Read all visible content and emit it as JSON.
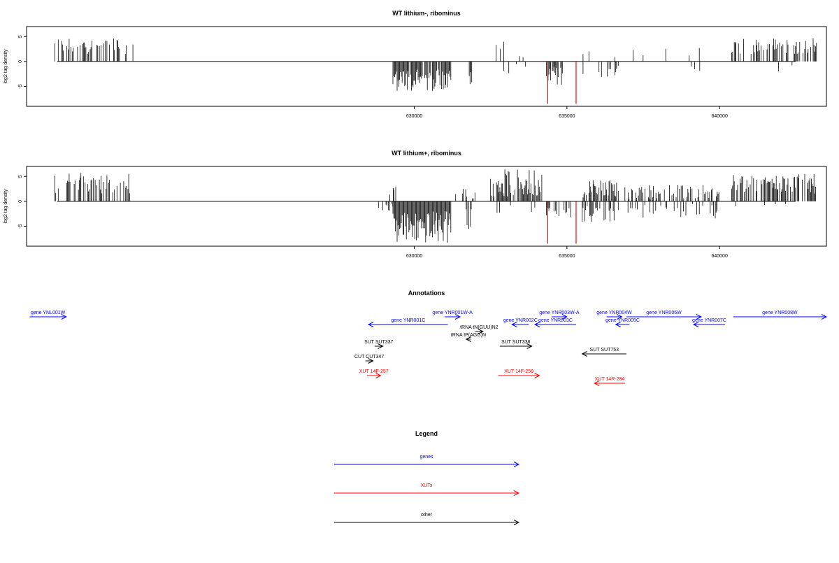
{
  "chart_data": [
    {
      "type": "bar",
      "title": "WT lithium-, ribominus",
      "xlabel": "",
      "ylabel": "log2 tag density",
      "xlim": [
        617300,
        643500
      ],
      "ylim": [
        -9,
        7
      ],
      "x_ticks": [
        630000,
        635000,
        640000
      ],
      "y_ticks": [
        5,
        0,
        -5
      ],
      "colors": {
        "signal": "#000000",
        "highlight": "#ff0000"
      },
      "segments": [
        {
          "start": 618200,
          "end": 620800,
          "sign": 1,
          "min": 1.5,
          "max": 4.8,
          "density": 0.45
        },
        {
          "start": 629300,
          "end": 631200,
          "sign": -1,
          "min": 1.5,
          "max": 6.0,
          "density": 0.9
        },
        {
          "start": 631800,
          "end": 631900,
          "sign": -1,
          "min": 2.0,
          "max": 4.8,
          "density": 0.9
        },
        {
          "start": 632600,
          "end": 633700,
          "sign": 1,
          "min": 0.5,
          "max": 4.0,
          "density": 0.12
        },
        {
          "start": 632600,
          "end": 633800,
          "sign": -1,
          "min": 0.5,
          "max": 2.5,
          "density": 0.08
        },
        {
          "start": 634300,
          "end": 634900,
          "sign": -1,
          "min": 1.0,
          "max": 5.0,
          "density": 0.8
        },
        {
          "start": 635500,
          "end": 636600,
          "sign": 1,
          "min": 0.5,
          "max": 3.2,
          "density": 0.12
        },
        {
          "start": 635500,
          "end": 636700,
          "sign": -1,
          "min": 0.5,
          "max": 3.2,
          "density": 0.15
        },
        {
          "start": 637000,
          "end": 640000,
          "sign": 1,
          "min": 0.5,
          "max": 2.8,
          "density": 0.1
        },
        {
          "start": 638800,
          "end": 640000,
          "sign": -1,
          "min": 0.5,
          "max": 2.5,
          "density": 0.1
        },
        {
          "start": 640400,
          "end": 643200,
          "sign": 1,
          "min": 1.5,
          "max": 4.8,
          "density": 0.45
        },
        {
          "start": 641000,
          "end": 642800,
          "sign": -1,
          "min": 0.5,
          "max": 3.0,
          "density": 0.03
        }
      ],
      "highlights": [
        {
          "x": 634370,
          "value": -8.5
        },
        {
          "x": 635300,
          "value": -8.5
        }
      ]
    },
    {
      "type": "bar",
      "title": "WT lithium+, ribominus",
      "xlabel": "",
      "ylabel": "log2 tag density",
      "xlim": [
        617300,
        643500
      ],
      "ylim": [
        -9,
        7
      ],
      "x_ticks": [
        630000,
        635000,
        640000
      ],
      "y_ticks": [
        5,
        0,
        -5
      ],
      "colors": {
        "signal": "#000000",
        "highlight": "#ff0000"
      },
      "segments": [
        {
          "start": 618200,
          "end": 620800,
          "sign": 1,
          "min": 1.5,
          "max": 5.8,
          "density": 0.55
        },
        {
          "start": 628800,
          "end": 629300,
          "sign": -1,
          "min": 0.5,
          "max": 2.0,
          "density": 0.4
        },
        {
          "start": 629200,
          "end": 629400,
          "sign": 1,
          "min": 1.0,
          "max": 3.5,
          "density": 0.5
        },
        {
          "start": 629300,
          "end": 631200,
          "sign": -1,
          "min": 2.0,
          "max": 8.5,
          "density": 1.0
        },
        {
          "start": 631300,
          "end": 632000,
          "sign": 1,
          "min": 0.5,
          "max": 2.8,
          "density": 0.3
        },
        {
          "start": 631700,
          "end": 631900,
          "sign": -1,
          "min": 1.5,
          "max": 6.0,
          "density": 0.6
        },
        {
          "start": 632500,
          "end": 634200,
          "sign": 1,
          "min": 0.8,
          "max": 6.5,
          "density": 0.85
        },
        {
          "start": 632600,
          "end": 634000,
          "sign": -1,
          "min": 0.5,
          "max": 3.0,
          "density": 0.15
        },
        {
          "start": 634300,
          "end": 635200,
          "sign": -1,
          "min": 0.5,
          "max": 3.5,
          "density": 0.55
        },
        {
          "start": 635500,
          "end": 636700,
          "sign": 1,
          "min": 0.8,
          "max": 4.3,
          "density": 0.6
        },
        {
          "start": 635500,
          "end": 636700,
          "sign": -1,
          "min": 0.8,
          "max": 4.5,
          "density": 0.6
        },
        {
          "start": 636900,
          "end": 640000,
          "sign": 1,
          "min": 0.5,
          "max": 3.3,
          "density": 0.4
        },
        {
          "start": 637000,
          "end": 640000,
          "sign": -1,
          "min": 0.5,
          "max": 3.5,
          "density": 0.3
        },
        {
          "start": 640400,
          "end": 643200,
          "sign": 1,
          "min": 1.5,
          "max": 5.5,
          "density": 0.6
        },
        {
          "start": 640400,
          "end": 643000,
          "sign": -1,
          "min": 0.5,
          "max": 1.5,
          "density": 0.05
        }
      ],
      "highlights": [
        {
          "x": 634370,
          "value": -8.5
        },
        {
          "x": 635300,
          "value": -8.5
        }
      ]
    },
    {
      "type": "diagram",
      "title": "Annotations",
      "colors": {
        "genes": "#0000ff",
        "XUTs": "#ff0000",
        "other": "#000000"
      },
      "features": [
        {
          "label": "gene YNL001W",
          "category": "genes",
          "start": 617400,
          "end": 618600,
          "direction": "right"
        },
        {
          "label": "gene YNR001C",
          "category": "genes",
          "start": 628500,
          "end": 631100,
          "direction": "left"
        },
        {
          "label": "gene YNR001W-A",
          "category": "genes",
          "start": 631000,
          "end": 631500,
          "direction": "right"
        },
        {
          "label": "gene YNR002C",
          "category": "genes",
          "start": 633200,
          "end": 633750,
          "direction": "left"
        },
        {
          "label": "gene YNR003W-A",
          "category": "genes",
          "start": 634500,
          "end": 635000,
          "direction": "right"
        },
        {
          "label": "gene YNR003C",
          "category": "genes",
          "start": 633950,
          "end": 635300,
          "direction": "left"
        },
        {
          "label": "gene YNR004W",
          "category": "genes",
          "start": 636300,
          "end": 636800,
          "direction": "right"
        },
        {
          "label": "gene YNR005C",
          "category": "genes",
          "start": 636600,
          "end": 637050,
          "direction": "left"
        },
        {
          "label": "gene YNR006W",
          "category": "genes",
          "start": 636950,
          "end": 639400,
          "direction": "right"
        },
        {
          "label": "gene YNR007C",
          "category": "genes",
          "start": 639150,
          "end": 640180,
          "direction": "left"
        },
        {
          "label": "gene YNR008W",
          "category": "genes",
          "start": 640450,
          "end": 643500,
          "direction": "right"
        },
        {
          "label": "tRNA tN(GUU)N2",
          "category": "other",
          "start": 632000,
          "end": 632250,
          "direction": "right"
        },
        {
          "label": "tRNA tP(AGG)N",
          "category": "other",
          "start": 631700,
          "end": 631850,
          "direction": "left"
        },
        {
          "label": "SUT SUT337",
          "category": "other",
          "start": 628700,
          "end": 628970,
          "direction": "right"
        },
        {
          "label": "SUT SUT338",
          "category": "other",
          "start": 632800,
          "end": 633850,
          "direction": "right"
        },
        {
          "label": "SUT SUT753",
          "category": "other",
          "start": 635500,
          "end": 636950,
          "direction": "left"
        },
        {
          "label": "CUT CUT347",
          "category": "other",
          "start": 628400,
          "end": 628650,
          "direction": "right"
        },
        {
          "label": "XUT 14F-257",
          "category": "XUTs",
          "start": 628450,
          "end": 628900,
          "direction": "right"
        },
        {
          "label": "XUT 14F-259",
          "category": "XUTs",
          "start": 632750,
          "end": 634100,
          "direction": "right"
        },
        {
          "label": "XUT 14R-284",
          "category": "XUTs",
          "start": 635900,
          "end": 636900,
          "direction": "left"
        }
      ]
    }
  ],
  "legend": {
    "title": "Legend",
    "items": [
      {
        "label": "genes",
        "color": "#0000ff"
      },
      {
        "label": "XUTs",
        "color": "#ff0000"
      },
      {
        "label": "other",
        "color": "#000000"
      }
    ]
  }
}
